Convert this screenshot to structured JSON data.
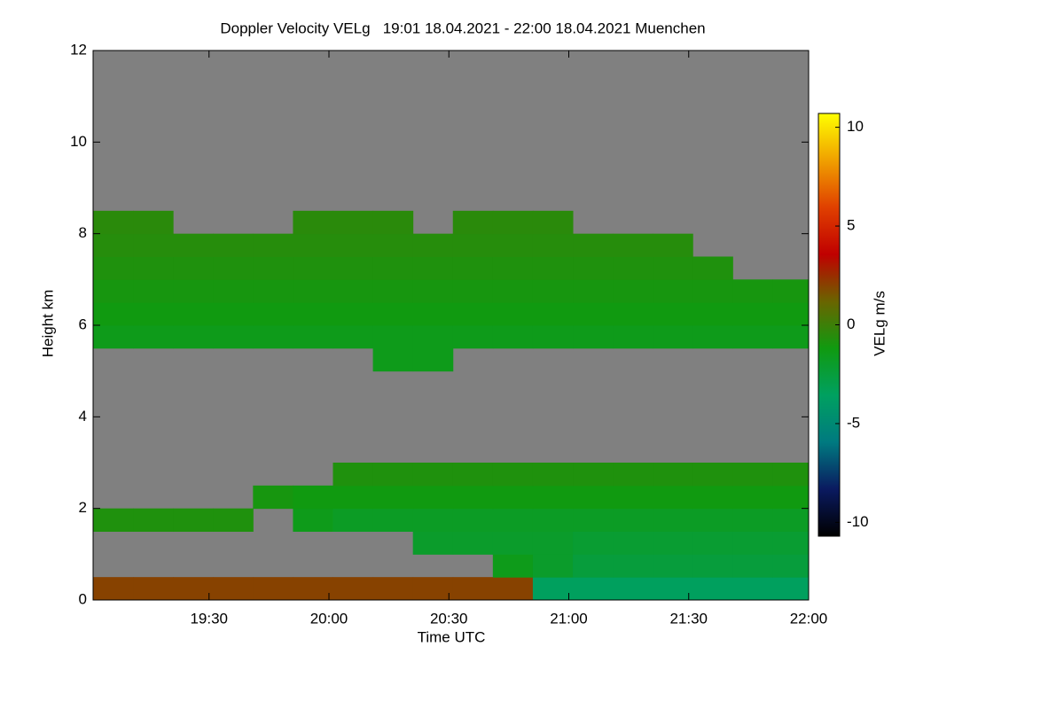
{
  "chart_data": {
    "type": "heatmap",
    "title": "Doppler Velocity VELg   19:01 18.04.2021 - 22:00 18.04.2021 Muenchen",
    "x_label": "Time UTC",
    "y_label": "Height km",
    "colorbar_label": "VELg m/s",
    "xlim": [
      1141,
      1320
    ],
    "xticks": [
      {
        "value": 1170,
        "label": "19:30"
      },
      {
        "value": 1200,
        "label": "20:00"
      },
      {
        "value": 1230,
        "label": "20:30"
      },
      {
        "value": 1260,
        "label": "21:00"
      },
      {
        "value": 1290,
        "label": "21:30"
      },
      {
        "value": 1320,
        "label": "22:00"
      }
    ],
    "ylim": [
      0,
      12
    ],
    "yticks": [
      0,
      2,
      4,
      6,
      8,
      10,
      12
    ],
    "clim": [
      -10.7,
      10.7
    ],
    "cticks": [
      -10,
      -5,
      0,
      5,
      10
    ],
    "colors": [
      "#000000",
      "#0a1a60",
      "#007a80",
      "#00a060",
      "#109a10",
      "#6a6400",
      "#c00000",
      "#e04000",
      "#f0a000",
      "#ffff00"
    ],
    "missing_color": "#808080",
    "x": [
      1146,
      1156,
      1166,
      1176,
      1186,
      1196,
      1206,
      1216,
      1226,
      1236,
      1246,
      1256,
      1266,
      1276,
      1286,
      1296,
      1306,
      1316
    ],
    "y": [
      0.25,
      0.75,
      1.25,
      1.75,
      2.25,
      2.75,
      3.25,
      3.75,
      4.25,
      4.75,
      5.25,
      5.75,
      6.25,
      6.75,
      7.25,
      7.75,
      8.25,
      8.75,
      9.25,
      9.75,
      10.25,
      10.75,
      11.25,
      11.75
    ],
    "z": [
      [
        2,
        2,
        2,
        2,
        2,
        2,
        2,
        2,
        2,
        2,
        2,
        -3.5,
        -3.5,
        -3.5,
        -3.5,
        -3.5,
        -3.5,
        -3.5
      ],
      [
        null,
        null,
        null,
        null,
        null,
        null,
        null,
        null,
        null,
        null,
        -1.5,
        -2,
        -2.5,
        -2.5,
        -2.5,
        -2.5,
        -2.5,
        -2.5
      ],
      [
        null,
        null,
        null,
        null,
        null,
        null,
        null,
        null,
        -2,
        -2,
        -2,
        -2,
        -2.2,
        -2.2,
        -2.2,
        -2.2,
        -2.2,
        -2.2
      ],
      [
        -0.8,
        -0.8,
        -0.8,
        -0.8,
        null,
        -1.5,
        -1.8,
        -1.8,
        -1.8,
        -1.8,
        -1.8,
        -1.8,
        -1.8,
        -1.8,
        -1.8,
        -1.8,
        -1.8,
        -1.8
      ],
      [
        null,
        null,
        null,
        null,
        -1,
        -1.2,
        -1.2,
        -1.2,
        -1.2,
        -1.2,
        -1.2,
        -1.2,
        -1.2,
        -1.2,
        -1.2,
        -1.2,
        -1.2,
        -1.2
      ],
      [
        null,
        null,
        null,
        null,
        null,
        null,
        -0.8,
        -0.8,
        -0.8,
        -0.8,
        -0.8,
        -0.8,
        -0.8,
        -0.8,
        -0.8,
        -0.8,
        -0.8,
        -0.8
      ],
      [
        null,
        null,
        null,
        null,
        null,
        null,
        null,
        null,
        null,
        null,
        null,
        null,
        null,
        null,
        null,
        null,
        null,
        null
      ],
      [
        null,
        null,
        null,
        null,
        null,
        null,
        null,
        null,
        null,
        null,
        null,
        null,
        null,
        null,
        null,
        null,
        null,
        null
      ],
      [
        null,
        null,
        null,
        null,
        null,
        null,
        null,
        null,
        null,
        null,
        null,
        null,
        null,
        null,
        null,
        null,
        null,
        null
      ],
      [
        null,
        null,
        null,
        null,
        null,
        null,
        null,
        null,
        null,
        null,
        null,
        null,
        null,
        null,
        null,
        null,
        null,
        null
      ],
      [
        null,
        null,
        null,
        null,
        null,
        null,
        null,
        -1.5,
        -1.5,
        null,
        null,
        null,
        null,
        null,
        null,
        null,
        null,
        null
      ],
      [
        -1.5,
        -1.5,
        -1.5,
        -1.5,
        -1.5,
        -1.5,
        -1.5,
        -1.5,
        -1.5,
        -1.5,
        -1.5,
        -1.5,
        -1.5,
        -1.5,
        -1.5,
        -1.5,
        -1.5,
        -1.5
      ],
      [
        -1.2,
        -1.2,
        -1.2,
        -1.2,
        -1.2,
        -1.2,
        -1.2,
        -1.2,
        -1.2,
        -1.2,
        -1.2,
        -1.2,
        -1.2,
        -1.2,
        -1.2,
        -1.2,
        -1.2,
        -1.2
      ],
      [
        -1,
        -1,
        -1,
        -1,
        -1,
        -1,
        -1,
        -1,
        -1,
        -1,
        -1,
        -1,
        -1,
        -1,
        -1,
        -1,
        -1,
        -1
      ],
      [
        -0.8,
        -0.8,
        -0.8,
        -0.8,
        -0.8,
        -0.8,
        -0.8,
        -0.8,
        -0.8,
        -0.8,
        -0.8,
        -0.8,
        -0.8,
        -0.8,
        -0.8,
        -0.8,
        null,
        null
      ],
      [
        -0.6,
        -0.6,
        -0.6,
        -0.6,
        -0.6,
        -0.6,
        -0.6,
        -0.6,
        -0.6,
        -0.6,
        -0.6,
        -0.6,
        -0.6,
        -0.6,
        -0.6,
        null,
        null,
        null
      ],
      [
        -0.5,
        -0.5,
        null,
        null,
        null,
        -0.5,
        -0.5,
        -0.5,
        null,
        -0.5,
        -0.5,
        -0.5,
        null,
        null,
        null,
        null,
        null,
        null
      ],
      [
        null,
        null,
        null,
        null,
        null,
        null,
        null,
        null,
        null,
        null,
        null,
        null,
        null,
        null,
        null,
        null,
        null,
        null
      ],
      [
        null,
        null,
        null,
        null,
        null,
        null,
        null,
        null,
        null,
        null,
        null,
        null,
        null,
        null,
        null,
        null,
        null,
        null
      ],
      [
        null,
        null,
        null,
        null,
        null,
        null,
        null,
        null,
        null,
        null,
        null,
        null,
        null,
        null,
        null,
        null,
        null,
        null
      ],
      [
        null,
        null,
        null,
        null,
        null,
        null,
        null,
        null,
        null,
        null,
        null,
        null,
        null,
        null,
        null,
        null,
        null,
        null
      ],
      [
        null,
        null,
        null,
        null,
        null,
        null,
        null,
        null,
        null,
        null,
        null,
        null,
        null,
        null,
        null,
        null,
        null,
        null
      ],
      [
        null,
        null,
        null,
        null,
        null,
        null,
        null,
        null,
        null,
        null,
        null,
        null,
        null,
        null,
        null,
        null,
        null,
        null
      ],
      [
        null,
        null,
        null,
        null,
        null,
        null,
        null,
        null,
        null,
        null,
        null,
        null,
        null,
        null,
        null,
        null,
        null,
        null
      ]
    ]
  }
}
